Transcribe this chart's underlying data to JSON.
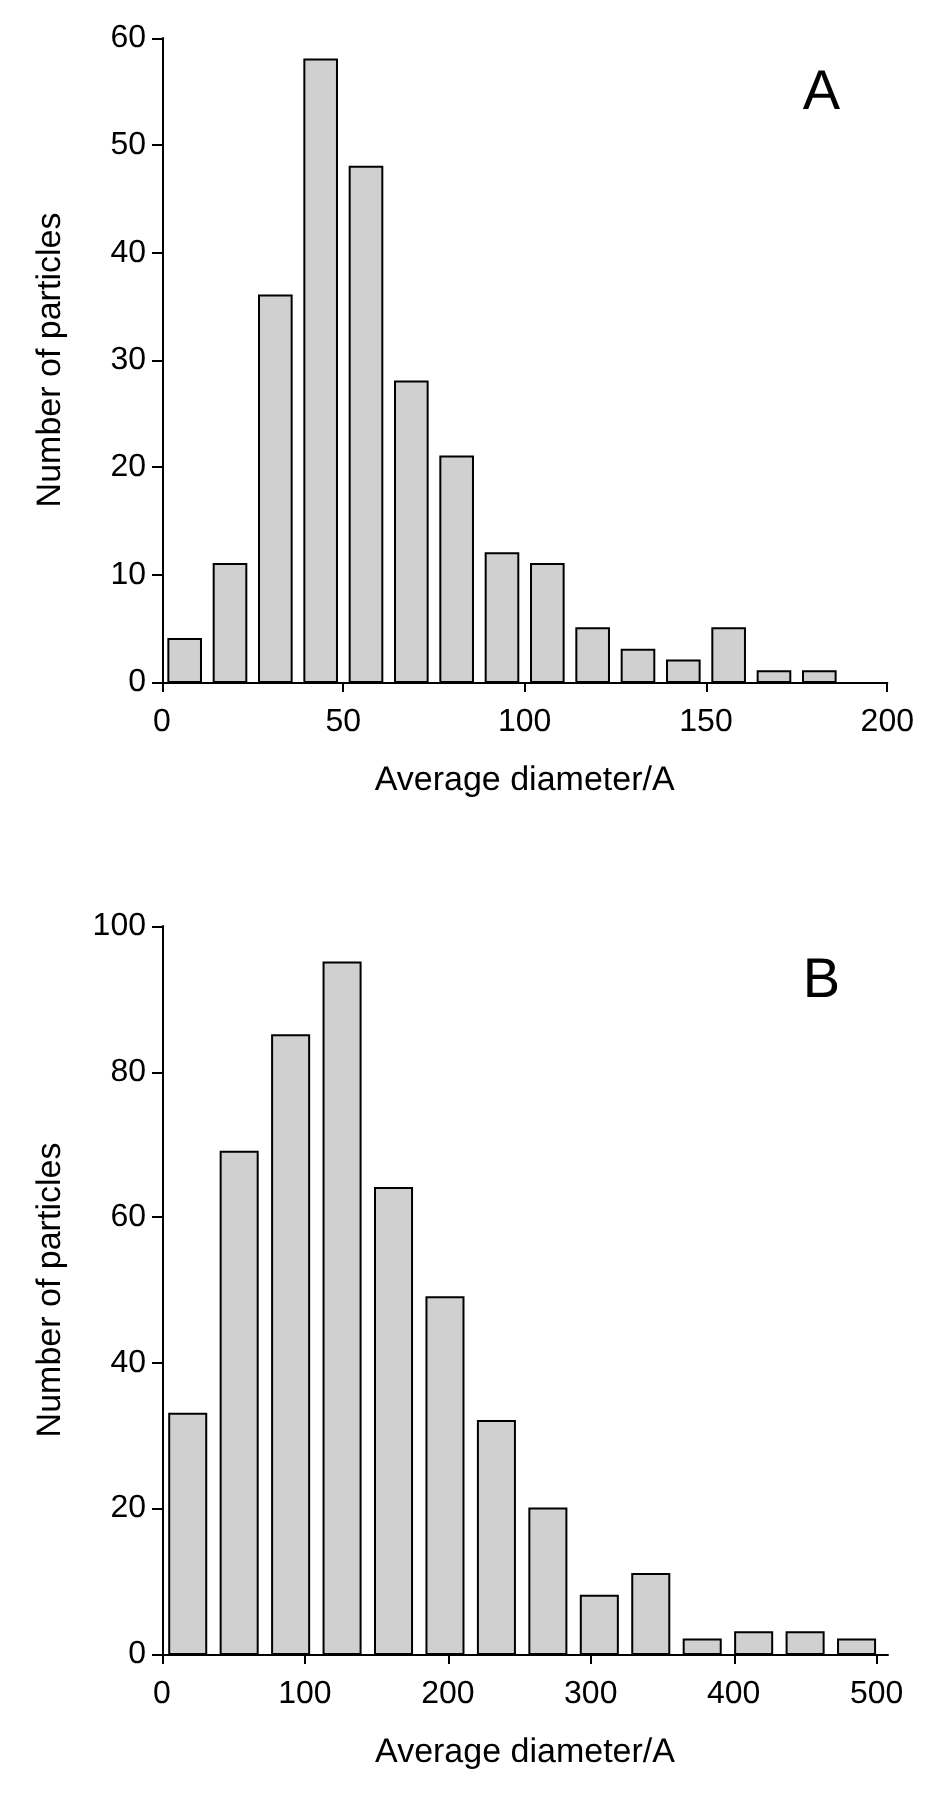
{
  "chart_data": [
    {
      "type": "histogram",
      "xlabel": "Average diameter/A",
      "ylabel": "Number of particles",
      "annotations": [
        "A"
      ],
      "color": "#d0d0d0",
      "bins": [
        0,
        12.5,
        25,
        37.5,
        50,
        62.5,
        75,
        87.5,
        100,
        112.5,
        125,
        137.5,
        150,
        162.5,
        175,
        187.5
      ],
      "values": [
        4,
        11,
        36,
        58,
        48,
        28,
        21,
        12,
        11,
        5,
        3,
        2,
        5,
        1,
        1
      ],
      "xlim": [
        0,
        200
      ],
      "xticks": [
        0,
        50,
        100,
        150,
        200
      ],
      "ylim": [
        0,
        60
      ],
      "yticks": [
        0,
        10,
        20,
        30,
        40,
        50,
        60
      ],
      "grid": false
    },
    {
      "type": "histogram",
      "xlabel": "Average diameter/A",
      "ylabel": "Number of particles",
      "annotations": [
        "B"
      ],
      "color": "#d0d0d0",
      "bins": [
        0,
        36,
        72,
        108,
        144,
        180,
        216,
        252,
        288,
        324,
        360,
        396,
        432,
        468,
        504
      ],
      "values": [
        33,
        69,
        85,
        95,
        64,
        49,
        32,
        20,
        8,
        11,
        2,
        3,
        3,
        2
      ],
      "xlim": [
        0,
        508
      ],
      "xticks": [
        0,
        100,
        200,
        300,
        400,
        500
      ],
      "ylim": [
        0,
        100
      ],
      "yticks": [
        0,
        20,
        40,
        60,
        80,
        100
      ],
      "grid": false
    }
  ]
}
